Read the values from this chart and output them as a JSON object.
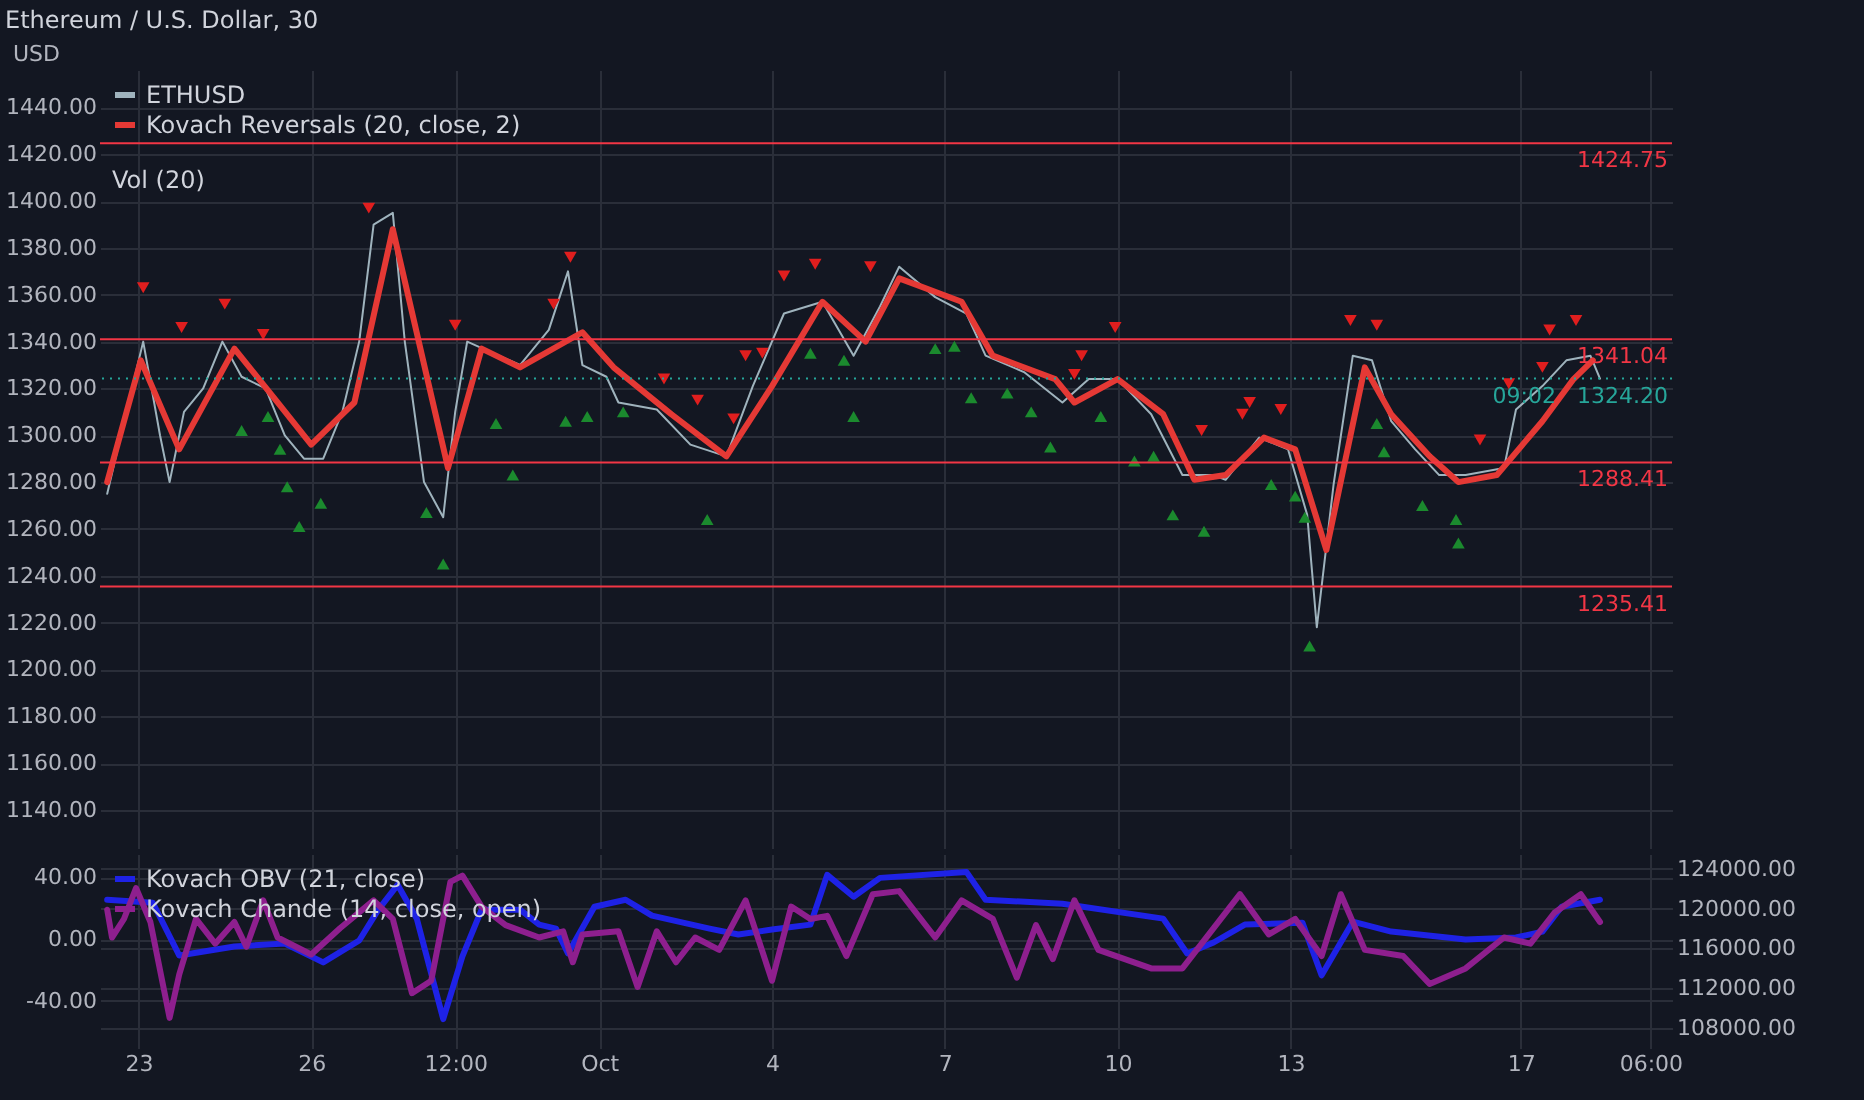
{
  "chart_data": [
    {
      "type": "line",
      "title": "Ethereum / U.S. Dollar, 30",
      "ylabel": "USD",
      "legend": "top left",
      "grid": true,
      "tick_labels": "y",
      "xlim": [
        "--09-22T08:00",
        "--10-19T15:00"
      ],
      "xticks": [
        {
          "value": "--09-23T00:00",
          "label": "23"
        },
        {
          "value": "--09-26T00:00",
          "label": "26"
        },
        {
          "value": "--09-28T12:00",
          "label": "12:00"
        },
        {
          "value": "--10-01T00:00",
          "label": "Oct"
        },
        {
          "value": "--10-04T00:00",
          "label": "4"
        },
        {
          "value": "--10-07T00:00",
          "label": "7"
        },
        {
          "value": "--10-10T00:00",
          "label": "10"
        },
        {
          "value": "--10-13T00:00",
          "label": "13"
        },
        {
          "value": "--10-17T00:00",
          "label": "17"
        },
        {
          "value": "--10-19T06:00",
          "label": "06:00"
        }
      ],
      "ylim": [
        1128,
        1456
      ],
      "yticks": [
        {
          "value": 1140,
          "label": "1140.00"
        },
        {
          "value": 1160,
          "label": "1160.00"
        },
        {
          "value": 1180,
          "label": "1180.00"
        },
        {
          "value": 1200,
          "label": "1200.00"
        },
        {
          "value": 1220,
          "label": "1220.00"
        },
        {
          "value": 1240,
          "label": "1240.00"
        },
        {
          "value": 1260,
          "label": "1260.00"
        },
        {
          "value": 1280,
          "label": "1280.00"
        },
        {
          "value": 1300,
          "label": "1300.00"
        },
        {
          "value": 1320,
          "label": "1320.00"
        },
        {
          "value": 1340,
          "label": "1340.00"
        },
        {
          "value": 1360,
          "label": "1360.00"
        },
        {
          "value": 1380,
          "label": "1380.00"
        },
        {
          "value": 1400,
          "label": "1400.00"
        },
        {
          "value": 1420,
          "label": "1420.00"
        },
        {
          "value": 1440,
          "label": "1440.00"
        }
      ],
      "ref_lines": [
        {
          "axis": "y",
          "value": 1424.75,
          "label": "1424.75",
          "color": "#f23645"
        },
        {
          "axis": "y",
          "value": 1341.04,
          "label": "1341.04",
          "color": "#f23645"
        },
        {
          "axis": "y",
          "value": 1288.41,
          "label": "1288.41",
          "color": "#f23645"
        },
        {
          "axis": "y",
          "value": 1235.41,
          "label": "1235.41",
          "color": "#f23645"
        },
        {
          "axis": "y",
          "value": 1324.2,
          "label": "1324.20",
          "color": "#26a69a",
          "line_style": "dotted"
        }
      ],
      "annotations": [
        "Vol (20)",
        {
          "text": "09:02",
          "y": 1324.2
        }
      ],
      "series": [
        {
          "name": "ETHUSD",
          "color": "#9fb3bd",
          "x": [
            "--09-22T11:00",
            "--09-22T19:00",
            "--09-23T02:00",
            "--09-23T09:00",
            "--09-23T13:00",
            "--09-23T19:00",
            "--09-24T03:00",
            "--09-24T11:00",
            "--09-24T19:00",
            "--09-25T05:00",
            "--09-25T13:00",
            "--09-25T21:00",
            "--09-26T05:00",
            "--09-26T13:00",
            "--09-26T20:00",
            "--09-27T02:00",
            "--09-27T10:00",
            "--09-27T15:00",
            "--09-27T23:00",
            "--09-28T07:00",
            "--09-28T12:00",
            "--09-28T17:00",
            "--09-29T04:00",
            "--09-29T15:00",
            "--09-30T03:00",
            "--09-30T11:00",
            "--09-30T17:00",
            "--10-01T03:00",
            "--10-01T08:00",
            "--10-02T00:00",
            "--10-02T14:00",
            "--10-03T05:00",
            "--10-03T16:00",
            "--10-04T05:00",
            "--10-04T21:00",
            "--10-05T10:00",
            "--10-05T21:00",
            "--10-06T05:00",
            "--10-06T20:00",
            "--10-07T09:00",
            "--10-07T17:00",
            "--10-08T09:00",
            "--10-09T01:00",
            "--10-09T12:00",
            "--10-10T00:00",
            "--10-10T14:00",
            "--10-11T03:00",
            "--10-11T16:00",
            "--10-11T21:00",
            "--10-12T11:00",
            "--10-12T23:00",
            "--10-13T07:00",
            "--10-13T11:00",
            "--10-13T18:00",
            "--10-14T02:00",
            "--10-14T10:00",
            "--10-14T18:00",
            "--10-15T04:00",
            "--10-15T14:00",
            "--10-16T01:00",
            "--10-16T17:00",
            "--10-16T22:00",
            "--10-17T09:00",
            "--10-17T19:00",
            "--10-18T05:00",
            "--10-18T09:00"
          ],
          "values": [
            1275,
            1310,
            1340,
            1300,
            1280,
            1310,
            1320,
            1340,
            1325,
            1320,
            1300,
            1290,
            1290,
            1310,
            1340,
            1390,
            1395,
            1340,
            1280,
            1265,
            1310,
            1340,
            1335,
            1330,
            1345,
            1370,
            1330,
            1325,
            1314,
            1311,
            1296,
            1291,
            1321,
            1352,
            1357,
            1334,
            1355,
            1372,
            1359,
            1352,
            1334,
            1327,
            1314,
            1324,
            1324,
            1309,
            1283,
            1283,
            1281,
            1299,
            1294,
            1266,
            1218,
            1279,
            1334,
            1332,
            1306,
            1294,
            1283,
            1283,
            1286,
            1311,
            1321,
            1332,
            1334,
            1324.2
          ]
        },
        {
          "name": "Kovach Reversals (20, close, 2)",
          "color": "#e53935",
          "x": [
            "--09-22T11:00",
            "--09-23T01:00",
            "--09-23T17:00",
            "--09-24T16:00",
            "--09-25T10:00",
            "--09-26T00:00",
            "--09-26T18:00",
            "--09-27T10:00",
            "--09-28T09:00",
            "--09-28T23:00",
            "--09-29T15:00",
            "--09-30T17:00",
            "--10-01T06:00",
            "--10-02T06:00",
            "--10-03T05:00",
            "--10-04T00:00",
            "--10-04T21:00",
            "--10-05T15:00",
            "--10-06T05:00",
            "--10-07T07:00",
            "--10-07T20:00",
            "--10-08T22:00",
            "--10-09T06:00",
            "--10-10T00:00",
            "--10-10T19:00",
            "--10-11T08:00",
            "--10-11T21:00",
            "--10-12T13:00",
            "--10-13T02:00",
            "--10-13T15:00",
            "--10-14T07:00",
            "--10-14T18:00",
            "--10-15T10:00",
            "--10-15T22:00",
            "--10-16T14:00",
            "--10-17T09:00",
            "--10-17T22:00",
            "--10-18T06:00"
          ],
          "values": [
            1280,
            1332,
            1294,
            1337,
            1314,
            1296,
            1314,
            1388,
            1286,
            1337,
            1329,
            1344,
            1329,
            1309,
            1291,
            1321,
            1357,
            1340,
            1367,
            1357,
            1334,
            1324,
            1314,
            1324,
            1309,
            1281,
            1283,
            1299,
            1294,
            1251,
            1329,
            1309,
            1291,
            1280,
            1283,
            1306,
            1324,
            1332
          ]
        },
        {
          "type": "scatter",
          "marker": "triangle-down",
          "color": "#e01e1e",
          "x": [
            "--09-23T02:00",
            "--09-23T18:00",
            "--09-24T12:00",
            "--09-25T04:00",
            "--09-27T00:00",
            "--09-28T12:00",
            "--09-30T05:00",
            "--09-30T12:00",
            "--10-02T03:00",
            "--10-02T17:00",
            "--10-03T08:00",
            "--10-03T13:00",
            "--10-03T20:00",
            "--10-04T05:00",
            "--10-04T18:00",
            "--10-05T17:00",
            "--10-09T06:00",
            "--10-09T09:00",
            "--10-09T23:00",
            "--10-11T11:00",
            "--10-12T04:00",
            "--10-12T07:00",
            "--10-12T20:00",
            "--10-14T01:00",
            "--10-14T12:00",
            "--10-16T07:00",
            "--10-16T19:00",
            "--10-17T09:00",
            "--10-17T12:00",
            "--10-17T23:00"
          ],
          "values": [
            1363,
            1346,
            1356,
            1343,
            1397,
            1347,
            1356,
            1376,
            1324,
            1315,
            1307,
            1334,
            1335,
            1368,
            1373,
            1372,
            1326,
            1334,
            1346,
            1302,
            1309,
            1314,
            1311,
            1349,
            1347,
            1298,
            1322,
            1329,
            1345,
            1349
          ]
        },
        {
          "type": "scatter",
          "marker": "triangle",
          "color": "#1b8a2e",
          "x": [
            "--09-24T19:00",
            "--09-25T06:00",
            "--09-25T11:00",
            "--09-25T14:00",
            "--09-25T19:00",
            "--09-26T04:00",
            "--09-28T00:00",
            "--09-28T07:00",
            "--09-29T05:00",
            "--09-29T12:00",
            "--09-30T10:00",
            "--09-30T19:00",
            "--10-01T10:00",
            "--10-02T21:00",
            "--10-04T16:00",
            "--10-05T06:00",
            "--10-05T10:00",
            "--10-06T20:00",
            "--10-07T04:00",
            "--10-07T11:00",
            "--10-08T02:00",
            "--10-08T12:00",
            "--10-08T20:00",
            "--10-09T17:00",
            "--10-10T07:00",
            "--10-10T15:00",
            "--10-10T23:00",
            "--10-11T12:00",
            "--10-12T16:00",
            "--10-13T02:00",
            "--10-13T06:00",
            "--10-13T08:00",
            "--10-14T12:00",
            "--10-14T15:00",
            "--10-15T07:00",
            "--10-15T21:00",
            "--10-15T22:00"
          ],
          "values": [
            1302,
            1308,
            1294,
            1278,
            1261,
            1271,
            1267,
            1245,
            1305,
            1283,
            1306,
            1308,
            1310,
            1264,
            1335,
            1332,
            1308,
            1337,
            1338,
            1316,
            1318,
            1310,
            1295,
            1308,
            1289,
            1291,
            1266,
            1259,
            1279,
            1274,
            1265,
            1210,
            1305,
            1293,
            1270,
            1264,
            1254
          ]
        }
      ]
    },
    {
      "type": "line",
      "legend": "top left",
      "grid": true,
      "xlim": [
        "--09-22T08:00",
        "--10-19T15:00"
      ],
      "xticks": [
        {
          "value": "--09-23T00:00",
          "label": "23"
        },
        {
          "value": "--09-26T00:00",
          "label": "26"
        },
        {
          "value": "--09-28T12:00",
          "label": "12:00"
        },
        {
          "value": "--10-01T00:00",
          "label": "Oct"
        },
        {
          "value": "--10-04T00:00",
          "label": "4"
        },
        {
          "value": "--10-07T00:00",
          "label": "7"
        },
        {
          "value": "--10-10T00:00",
          "label": "10"
        },
        {
          "value": "--10-13T00:00",
          "label": "13"
        },
        {
          "value": "--10-17T00:00",
          "label": "17"
        },
        {
          "value": "--10-19T06:00",
          "label": "06:00"
        }
      ],
      "ylim": [
        -64,
        55
      ],
      "yticks": [
        {
          "value": -40,
          "label": "-40.00"
        },
        {
          "value": 0,
          "label": "0.00"
        },
        {
          "value": 40,
          "label": "40.00"
        }
      ],
      "y2lim": [
        107000,
        125500
      ],
      "y2ticks": [
        {
          "value": 108000,
          "label": "108000.00"
        },
        {
          "value": 112000,
          "label": "112000.00"
        },
        {
          "value": 116000,
          "label": "116000.00"
        },
        {
          "value": 120000,
          "label": "120000.00"
        },
        {
          "value": 124000,
          "label": "124000.00"
        }
      ],
      "series": [
        {
          "name": "Kovach OBV (21, close)",
          "color": "#1e22e6",
          "axis": "y2",
          "x": [
            "--09-22T11:00",
            "--09-23T06:00",
            "--09-23T17:00",
            "--09-24T16:00",
            "--09-25T13:00",
            "--09-26T05:00",
            "--09-26T20:00",
            "--09-27T04:00",
            "--09-27T12:00",
            "--09-27T20:00",
            "--09-28T07:00",
            "--09-28T15:00",
            "--09-28T23:00",
            "--09-29T15:00",
            "--09-29T23:00",
            "--09-30T06:00",
            "--09-30T11:00",
            "--09-30T22:00",
            "--10-01T11:00",
            "--10-01T22:00",
            "--10-02T22:00",
            "--10-03T10:00",
            "--10-04T00:00",
            "--10-04T16:00",
            "--10-04T23:00",
            "--10-05T10:00",
            "--10-05T21:00",
            "--10-07T09:00",
            "--10-07T17:00",
            "--10-09T01:00",
            "--10-10T19:00",
            "--10-11T05:00",
            "--10-11T16:00",
            "--10-12T05:00",
            "--10-13T05:00",
            "--10-13T13:00",
            "--10-14T02:00",
            "--10-14T18:00",
            "--10-16T01:00",
            "--10-16T22:00",
            "--10-17T09:00",
            "--10-17T17:00",
            "--10-18T09:00"
          ],
          "values": [
            120900,
            120600,
            115300,
            116200,
            116500,
            114600,
            116800,
            119900,
            122400,
            119000,
            108900,
            115200,
            119900,
            119900,
            118400,
            118000,
            115500,
            120200,
            120900,
            119300,
            118000,
            117400,
            117900,
            118400,
            123400,
            121200,
            123100,
            123700,
            120900,
            120500,
            119000,
            115500,
            116600,
            118400,
            118600,
            113300,
            118700,
            117700,
            116900,
            117100,
            117700,
            120200,
            120900
          ]
        },
        {
          "name": "Kovach Chande (14, close, open)",
          "color": "#8e1f8e",
          "x": [
            "--09-22T11:00",
            "--09-22T13:00",
            "--09-22T18:00",
            "--09-22T23:00",
            "--09-23T05:00",
            "--09-23T13:00",
            "--09-23T17:00",
            "--09-24T00:00",
            "--09-24T08:00",
            "--09-24T16:00",
            "--09-24T21:00",
            "--09-25T04:00",
            "--09-25T10:00",
            "--09-26T00:00",
            "--09-26T12:00",
            "--09-27T02:00",
            "--09-27T10:00",
            "--09-27T18:00",
            "--09-28T02:00",
            "--09-28T10:00",
            "--09-28T15:00",
            "--09-28T23:00",
            "--09-29T09:00",
            "--09-29T23:00",
            "--09-30T09:00",
            "--09-30T13:00",
            "--09-30T17:00",
            "--10-01T08:00",
            "--10-01T16:00",
            "--10-02T00:00",
            "--10-02T08:00",
            "--10-02T16:00",
            "--10-03T02:00",
            "--10-03T13:00",
            "--10-04T00:00",
            "--10-04T08:00",
            "--10-04T16:00",
            "--10-04T23:00",
            "--10-05T07:00",
            "--10-05T18:00",
            "--10-06T05:00",
            "--10-06T20:00",
            "--10-07T07:00",
            "--10-07T20:00",
            "--10-08T06:00",
            "--10-08T14:00",
            "--10-08T21:00",
            "--10-09T06:00",
            "--10-09T16:00",
            "--10-10T14:00",
            "--10-11T03:00",
            "--10-12T03:00",
            "--10-12T15:00",
            "--10-13T02:00",
            "--10-13T13:00",
            "--10-13T21:00",
            "--10-14T07:00",
            "--10-14T23:00",
            "--10-15T10:00",
            "--10-16T01:00",
            "--10-16T17:00",
            "--10-17T04:00",
            "--10-17T14:00",
            "--10-18T01:00",
            "--10-18T09:00"
          ],
          "values": [
            19,
            1,
            13,
            33,
            11,
            -51,
            -23,
            13,
            -3,
            11,
            -5,
            25,
            1,
            -10,
            7,
            25,
            13,
            -35,
            -27,
            37,
            41,
            21,
            9,
            1,
            5,
            -15,
            3,
            5,
            -31,
            5,
            -15,
            1,
            -7,
            25,
            -27,
            21,
            13,
            15,
            -11,
            29,
            31,
            1,
            25,
            13,
            -25,
            9,
            -13,
            25,
            -7,
            -19,
            -19,
            29,
            3,
            13,
            -11,
            29,
            -7,
            -11,
            -29,
            -19,
            1,
            -3,
            17,
            29,
            11
          ]
        }
      ]
    }
  ]
}
